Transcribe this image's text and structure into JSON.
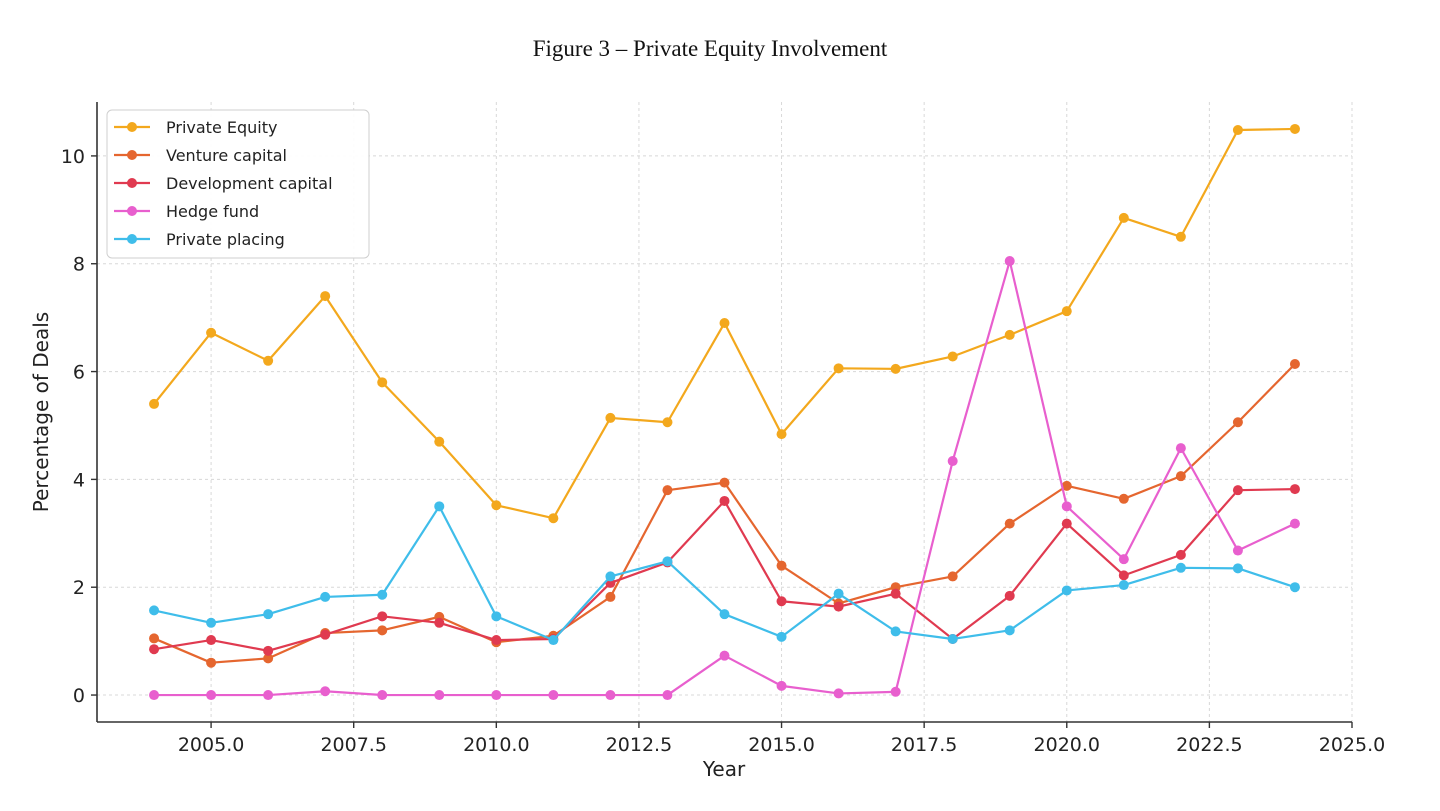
{
  "figure_title": "Figure 3 – Private Equity Involvement",
  "chart_data": {
    "type": "line",
    "xlabel": "Year",
    "ylabel": "Percentage of Deals",
    "xlim": [
      2003.0,
      2025.0
    ],
    "ylim": [
      -0.5,
      11.0
    ],
    "x_ticks": [
      2005.0,
      2007.5,
      2010.0,
      2012.5,
      2015.0,
      2017.5,
      2020.0,
      2022.5,
      2025.0
    ],
    "x_tick_labels": [
      "2005.0",
      "2007.5",
      "2010.0",
      "2012.5",
      "2015.0",
      "2017.5",
      "2020.0",
      "2022.5",
      "2025.0"
    ],
    "y_ticks": [
      0,
      2,
      4,
      6,
      8,
      10
    ],
    "y_tick_labels": [
      "0",
      "2",
      "4",
      "6",
      "8",
      "10"
    ],
    "grid": true,
    "legend_position": "top-left",
    "x": [
      2004,
      2005,
      2006,
      2007,
      2008,
      2009,
      2010,
      2011,
      2012,
      2013,
      2014,
      2015,
      2016,
      2017,
      2018,
      2019,
      2020,
      2021,
      2022,
      2023,
      2024
    ],
    "series": [
      {
        "name": "Private Equity",
        "color": "#f3a81d",
        "values": [
          5.4,
          6.72,
          6.2,
          7.4,
          5.8,
          4.7,
          3.52,
          3.28,
          5.14,
          5.06,
          6.9,
          4.84,
          6.06,
          6.05,
          6.28,
          6.68,
          7.12,
          8.85,
          8.5,
          10.48,
          10.5
        ]
      },
      {
        "name": "Venture capital",
        "color": "#e5662f",
        "values": [
          1.05,
          0.6,
          0.68,
          1.15,
          1.2,
          1.45,
          0.98,
          1.1,
          1.82,
          3.8,
          3.94,
          2.4,
          1.7,
          2.0,
          2.2,
          3.18,
          3.88,
          3.64,
          4.06,
          5.06,
          6.14
        ]
      },
      {
        "name": "Development capital",
        "color": "#e03a50",
        "values": [
          0.85,
          1.02,
          0.82,
          1.12,
          1.46,
          1.34,
          1.02,
          1.04,
          2.08,
          2.46,
          3.6,
          1.74,
          1.64,
          1.88,
          1.04,
          1.84,
          3.18,
          2.22,
          2.6,
          3.8,
          3.82
        ]
      },
      {
        "name": "Hedge fund",
        "color": "#e85fce",
        "values": [
          0.0,
          0.0,
          0.0,
          0.07,
          0.0,
          0.0,
          0.0,
          0.0,
          0.0,
          0.0,
          0.73,
          0.17,
          0.03,
          0.06,
          4.34,
          8.05,
          3.5,
          2.52,
          4.58,
          2.68,
          3.18
        ]
      },
      {
        "name": "Private placing",
        "color": "#3fbdea",
        "values": [
          1.57,
          1.34,
          1.5,
          1.82,
          1.86,
          3.5,
          1.46,
          1.02,
          2.2,
          2.48,
          1.5,
          1.08,
          1.88,
          1.18,
          1.04,
          1.2,
          1.94,
          2.04,
          2.36,
          2.35,
          2.0
        ]
      }
    ]
  }
}
